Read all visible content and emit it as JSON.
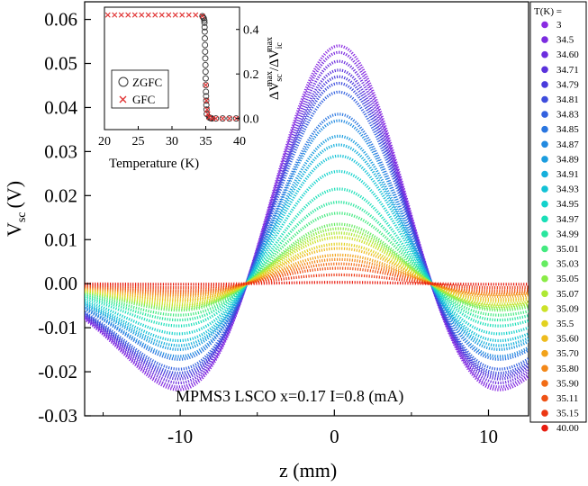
{
  "chart_data": [
    {
      "type": "line",
      "title": "",
      "xlabel": "z (mm)",
      "ylabel_main": "V",
      "ylabel_sub": "sc",
      "ylabel_unit": "(V)",
      "xlim": [
        -16.2,
        12.6
      ],
      "ylim": [
        -0.03,
        0.064
      ],
      "x_ticks": [
        -10,
        0,
        10
      ],
      "x_tick_labels": [
        "-10",
        "0",
        "10"
      ],
      "y_ticks": [
        -0.03,
        -0.02,
        -0.01,
        0.0,
        0.01,
        0.02,
        0.03,
        0.04,
        0.05,
        0.06
      ],
      "y_tick_labels": [
        "-0.03",
        "-0.02",
        "-0.01",
        "0.00",
        "0.01",
        "0.02",
        "0.03",
        "0.04",
        "0.05",
        "0.06"
      ],
      "annotation": "MPMS3 LSCO x=0.17   I=0.8 (mA)",
      "legend_title": "T(K) =",
      "legend_position": "right",
      "series": [
        {
          "name": "3",
          "color": "#8a2be2",
          "peak": 0.054
        },
        {
          "name": "34.5",
          "color": "#7b2ce0",
          "peak": 0.0525
        },
        {
          "name": "34.60",
          "color": "#6c2ede",
          "peak": 0.0505
        },
        {
          "name": "34.71",
          "color": "#5a32dc",
          "peak": 0.0485
        },
        {
          "name": "34.79",
          "color": "#4a3bdc",
          "peak": 0.047
        },
        {
          "name": "34.81",
          "color": "#3e4ddd",
          "peak": 0.0455
        },
        {
          "name": "34.83",
          "color": "#3462df",
          "peak": 0.0435
        },
        {
          "name": "34.85",
          "color": "#2a76e0",
          "peak": 0.0385
        },
        {
          "name": "34.87",
          "color": "#228ae0",
          "peak": 0.037
        },
        {
          "name": "34.89",
          "color": "#1c9ddf",
          "peak": 0.0335
        },
        {
          "name": "34.91",
          "color": "#16b0dc",
          "peak": 0.0315
        },
        {
          "name": "34.93",
          "color": "#13c2d6",
          "peak": 0.029
        },
        {
          "name": "34.95",
          "color": "#14d2cc",
          "peak": 0.0255
        },
        {
          "name": "34.97",
          "color": "#1adfb8",
          "peak": 0.0215
        },
        {
          "name": "34.99",
          "color": "#2ae69e",
          "peak": 0.0185
        },
        {
          "name": "35.01",
          "color": "#44ea80",
          "peak": 0.016
        },
        {
          "name": "35.03",
          "color": "#66ec62",
          "peak": 0.0135
        },
        {
          "name": "35.05",
          "color": "#8aec46",
          "peak": 0.0125
        },
        {
          "name": "35.07",
          "color": "#aee834",
          "peak": 0.0115
        },
        {
          "name": "35.09",
          "color": "#cce228",
          "peak": 0.0105
        },
        {
          "name": "35.5",
          "color": "#e2d221",
          "peak": 0.009
        },
        {
          "name": "35.60",
          "color": "#eebc1e",
          "peak": 0.008
        },
        {
          "name": "35.70",
          "color": "#f2a31b",
          "peak": 0.0065
        },
        {
          "name": "35.80",
          "color": "#f38819",
          "peak": 0.0055
        },
        {
          "name": "35.90",
          "color": "#f26d17",
          "peak": 0.0045
        },
        {
          "name": "35.11",
          "color": "#ef5215",
          "peak": 0.0035
        },
        {
          "name": "35.15",
          "color": "#ec3713",
          "peak": 0.002
        },
        {
          "name": "40.00",
          "color": "#e81c10",
          "peak": 0.0003
        }
      ]
    },
    {
      "type": "scatter",
      "xlabel": "Temperature (K)",
      "ylabel_main": "ΔV",
      "ylabel_sup1": "max",
      "ylabel_sub1": "sc",
      "ylabel_slash": "/ΔV",
      "ylabel_sup2": "max",
      "ylabel_sub2": "ic",
      "xlim": [
        20,
        40
      ],
      "ylim": [
        -0.05,
        0.5
      ],
      "x_ticks": [
        20,
        25,
        30,
        35,
        40
      ],
      "x_tick_labels": [
        "20",
        "25",
        "30",
        "35",
        "40"
      ],
      "y_ticks": [
        0.0,
        0.2,
        0.4
      ],
      "y_tick_labels": [
        "0.0",
        "0.2",
        "0.4"
      ],
      "series": [
        {
          "name": "ZGFC",
          "marker": "open-circle",
          "color": "#333333",
          "x": [
            34.5,
            34.6,
            34.71,
            34.79,
            34.81,
            34.83,
            34.85,
            34.87,
            34.89,
            34.91,
            34.93,
            34.95,
            34.97,
            34.99,
            35.01,
            35.03,
            35.05,
            35.07,
            35.09,
            35.11,
            35.15,
            35.5,
            35.6,
            35.7,
            35.8,
            35.9,
            36.5,
            37.5,
            38.5,
            39.5
          ],
          "y": [
            0.46,
            0.455,
            0.45,
            0.44,
            0.43,
            0.41,
            0.39,
            0.36,
            0.33,
            0.3,
            0.27,
            0.24,
            0.21,
            0.18,
            0.15,
            0.12,
            0.1,
            0.08,
            0.06,
            0.04,
            0.02,
            0.005,
            0.003,
            0.002,
            0.001,
            0.0,
            0.0,
            0.0,
            0.0,
            0.0
          ]
        },
        {
          "name": "GFC",
          "marker": "x",
          "color": "#e03030",
          "x": [
            20.5,
            21.5,
            22.5,
            23.5,
            24.5,
            25.5,
            26.5,
            27.5,
            28.5,
            29.5,
            30.5,
            31.5,
            32.5,
            33.5,
            34.5,
            35.0,
            35.1,
            35.2,
            35.3,
            35.5,
            36.0,
            36.5,
            37.5,
            38.5,
            39.5
          ],
          "y": [
            0.465,
            0.465,
            0.465,
            0.465,
            0.465,
            0.465,
            0.465,
            0.465,
            0.465,
            0.465,
            0.465,
            0.465,
            0.465,
            0.465,
            0.46,
            0.15,
            0.08,
            0.04,
            0.02,
            0.005,
            0.0,
            0.0,
            0.0,
            0.0,
            0.0
          ]
        }
      ]
    }
  ]
}
